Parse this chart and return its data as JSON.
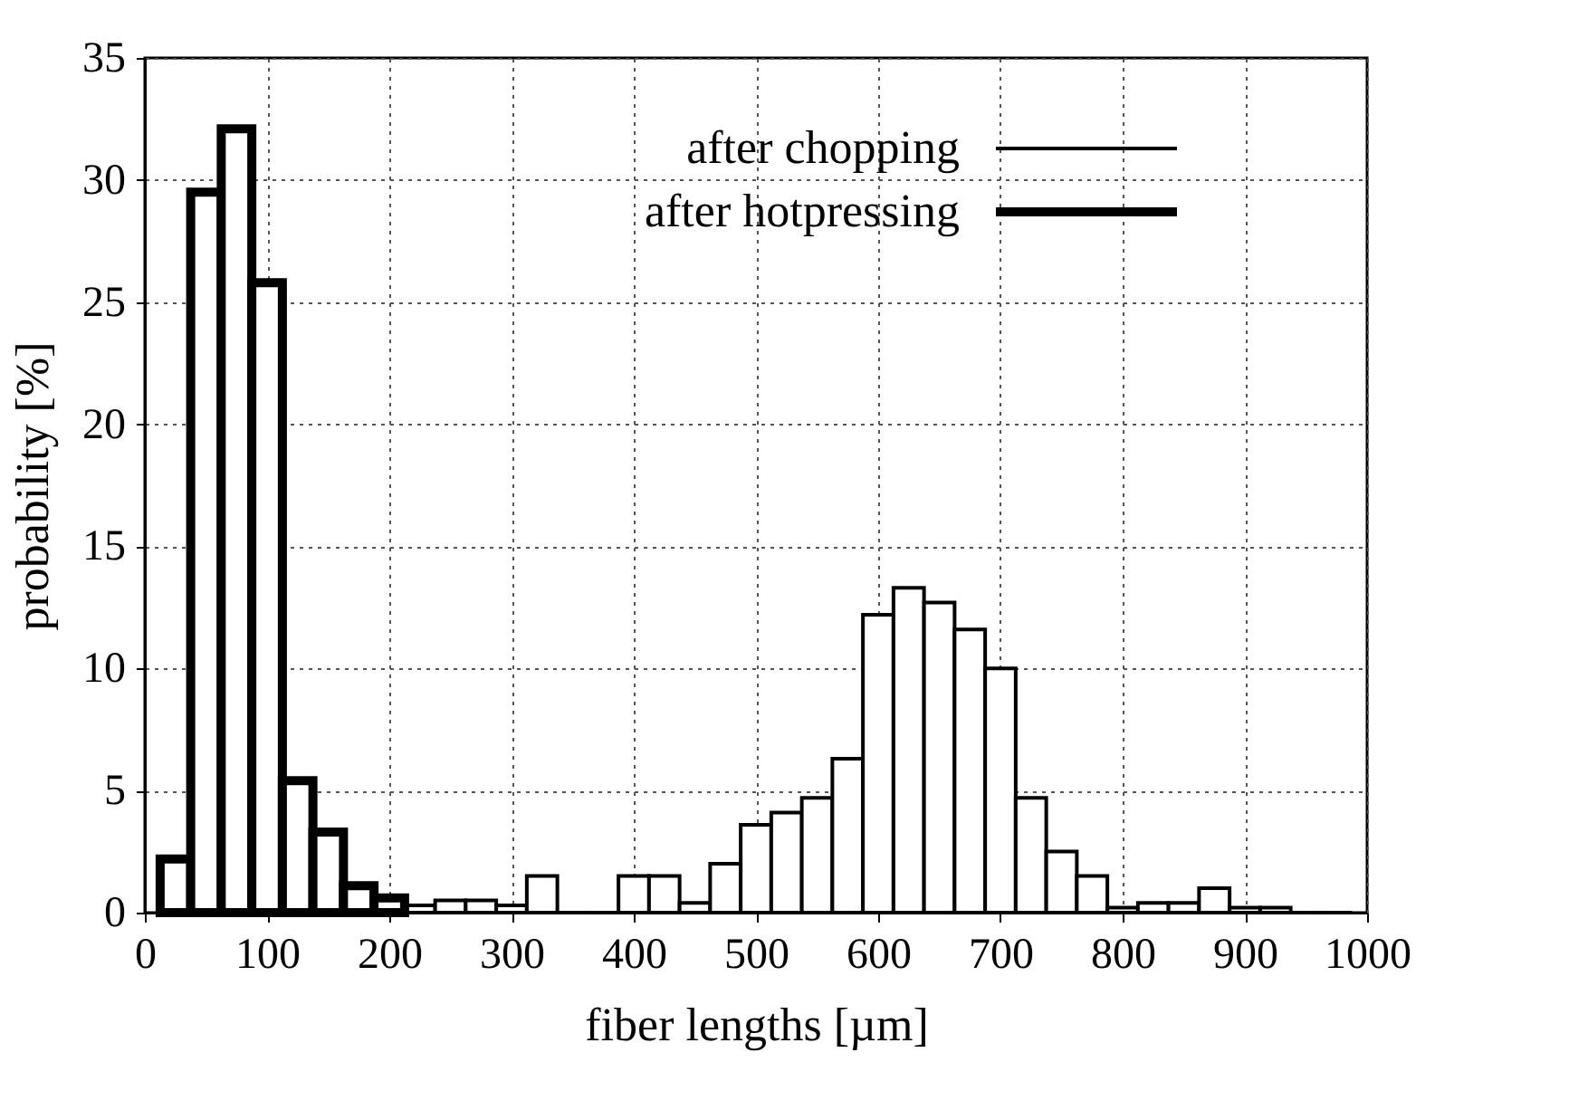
{
  "chart_data": {
    "type": "histogram",
    "xlabel": "fiber lengths [µm]",
    "ylabel": "probability [%]",
    "bins": [
      12.5,
      37.5,
      62.5,
      87.5,
      112.5,
      137.5,
      162.5,
      187.5,
      212.5,
      237.5,
      262.5,
      287.5,
      312.5,
      337.5,
      362.5,
      387.5,
      412.5,
      437.5,
      462.5,
      487.5,
      512.5,
      537.5,
      562.5,
      587.5,
      612.5,
      637.5,
      662.5,
      687.5,
      712.5,
      737.5,
      762.5,
      787.5,
      812.5,
      837.5,
      862.5,
      887.5,
      912.5,
      937.5,
      962.5,
      987.5
    ],
    "series": [
      {
        "name": "after chopping",
        "color": "#000000",
        "values": [
          0,
          0,
          0,
          0,
          0,
          0,
          0,
          0,
          0.3,
          0.5,
          0.5,
          0.3,
          1.5,
          0,
          0,
          1.5,
          1.5,
          0.4,
          2.0,
          3.6,
          4.1,
          4.7,
          6.3,
          12.2,
          13.3,
          12.7,
          11.6,
          10.0,
          4.7,
          2.5,
          1.5,
          0.2,
          0.4,
          0.4,
          1.0,
          0.2,
          0.2,
          0,
          0
        ]
      },
      {
        "name": "after hotpressing",
        "color": "#000000",
        "values": [
          2.2,
          29.5,
          32.1,
          25.8,
          5.4,
          3.3,
          1.1,
          0.6,
          null,
          null,
          null,
          null,
          null,
          null,
          null,
          null,
          null,
          null,
          null,
          null,
          null,
          null,
          null,
          null,
          null,
          null,
          null,
          null,
          null,
          null,
          null,
          null,
          null,
          null,
          null,
          null,
          null,
          null,
          null
        ]
      }
    ],
    "xlim": [
      0,
      1000
    ],
    "xticks": [
      0,
      100,
      200,
      300,
      400,
      500,
      600,
      700,
      800,
      900,
      1000
    ],
    "ylim": [
      0,
      35
    ],
    "yticks": [
      0,
      5,
      10,
      15,
      20,
      25,
      30,
      35
    ],
    "grid": true,
    "legend": "top right"
  }
}
